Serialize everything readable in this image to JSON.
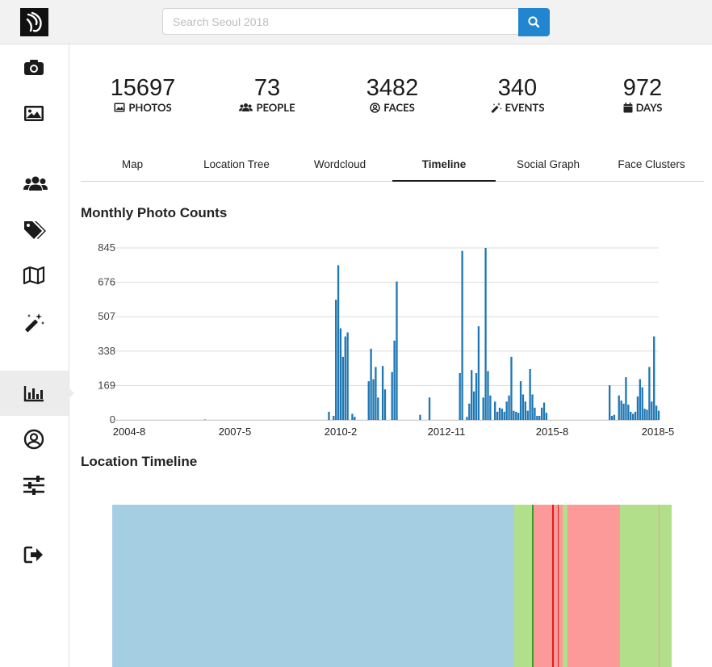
{
  "app": {
    "search_placeholder": "Search Seoul 2018"
  },
  "stats": [
    {
      "value": "15697",
      "label": "PHOTOS",
      "icon": "image-icon"
    },
    {
      "value": "73",
      "label": "PEOPLE",
      "icon": "users-icon"
    },
    {
      "value": "3482",
      "label": "FACES",
      "icon": "user-circle-icon"
    },
    {
      "value": "340",
      "label": "EVENTS",
      "icon": "magic-wand-icon"
    },
    {
      "value": "972",
      "label": "DAYS",
      "icon": "calendar-icon"
    }
  ],
  "tabs": [
    {
      "label": "Map"
    },
    {
      "label": "Location Tree"
    },
    {
      "label": "Wordcloud"
    },
    {
      "label": "Timeline",
      "active": true
    },
    {
      "label": "Social Graph"
    },
    {
      "label": "Face Clusters"
    }
  ],
  "sections": {
    "monthly_title": "Monthly Photo Counts",
    "location_title": "Location Timeline"
  },
  "colors": {
    "bar": "#1f77b4",
    "accent": "#2185d0",
    "loc_blue": "#a6cee3",
    "loc_green": "#b2df8a",
    "loc_red": "#fb9a99",
    "loc_darkgreen": "#33a02c",
    "loc_darkred": "#e31a1c"
  },
  "chart_data": {
    "type": "bar",
    "title": "Monthly Photo Counts",
    "xlabel": "",
    "ylabel": "",
    "x_tick_labels": [
      "2004-8",
      "2007-5",
      "2010-2",
      "2012-11",
      "2015-8",
      "2018-5"
    ],
    "y_ticks": [
      0,
      169,
      338,
      507,
      676,
      845
    ],
    "ylim": [
      0,
      845
    ],
    "grid": true,
    "months_from": "2004-08",
    "values": [
      0,
      0,
      0,
      0,
      0,
      0,
      0,
      0,
      0,
      0,
      0,
      0,
      0,
      0,
      0,
      0,
      0,
      0,
      0,
      0,
      0,
      0,
      0,
      0,
      0,
      0,
      0,
      0,
      0,
      0,
      0,
      0,
      0,
      0,
      0,
      0,
      0,
      0,
      0,
      0,
      2,
      0,
      0,
      0,
      0,
      0,
      0,
      0,
      0,
      0,
      0,
      0,
      0,
      0,
      0,
      0,
      0,
      0,
      0,
      0,
      0,
      0,
      0,
      0,
      0,
      0,
      0,
      0,
      0,
      0,
      0,
      0,
      0,
      0,
      0,
      0,
      0,
      0,
      0,
      0,
      0,
      0,
      0,
      0,
      0,
      0,
      0,
      0,
      0,
      0,
      0,
      0,
      0,
      40,
      0,
      20,
      590,
      760,
      450,
      310,
      410,
      430,
      0,
      30,
      15,
      0,
      0,
      0,
      0,
      0,
      190,
      350,
      200,
      260,
      110,
      0,
      265,
      150,
      0,
      0,
      235,
      390,
      680,
      0,
      0,
      0,
      0,
      0,
      0,
      0,
      0,
      0,
      25,
      0,
      0,
      0,
      110,
      0,
      0,
      0,
      0,
      0,
      0,
      0,
      0,
      0,
      0,
      0,
      0,
      230,
      830,
      0,
      15,
      80,
      245,
      140,
      230,
      460,
      0,
      110,
      845,
      240,
      120,
      0,
      90,
      40,
      60,
      55,
      40,
      90,
      120,
      310,
      45,
      40,
      35,
      190,
      125,
      90,
      45,
      250,
      125,
      60,
      20,
      20,
      60,
      85,
      35,
      0,
      0,
      0,
      0,
      0,
      0,
      0,
      0,
      0,
      0,
      0,
      0,
      0,
      0,
      0,
      0,
      0,
      0,
      0,
      0,
      0,
      0,
      0,
      0,
      0,
      0,
      170,
      20,
      25,
      0,
      120,
      95,
      80,
      210,
      75,
      40,
      30,
      40,
      115,
      200,
      160,
      55,
      50,
      260,
      90,
      410,
      70,
      45
    ]
  },
  "location_timeline": [
    {
      "start": 0.0,
      "end": 0.718,
      "color": "#a6cee3"
    },
    {
      "start": 0.718,
      "end": 0.751,
      "color": "#b2df8a"
    },
    {
      "start": 0.751,
      "end": 0.753,
      "color": "#33a02c"
    },
    {
      "start": 0.753,
      "end": 0.787,
      "color": "#fb9a99"
    },
    {
      "start": 0.787,
      "end": 0.789,
      "color": "#e31a1c"
    },
    {
      "start": 0.789,
      "end": 0.797,
      "color": "#fb9a99"
    },
    {
      "start": 0.797,
      "end": 0.798,
      "color": "#e31a1c"
    },
    {
      "start": 0.798,
      "end": 0.805,
      "color": "#fb9a99"
    },
    {
      "start": 0.805,
      "end": 0.814,
      "color": "#b2df8a"
    },
    {
      "start": 0.814,
      "end": 0.907,
      "color": "#fb9a99"
    },
    {
      "start": 0.907,
      "end": 0.962,
      "color": "#b2df8a"
    },
    {
      "start": 0.962,
      "end": 0.963,
      "color": "#fb9a99"
    },
    {
      "start": 0.963,
      "end": 0.977,
      "color": "#b2df8a"
    },
    {
      "start": 0.977,
      "end": 0.978,
      "color": "#fb9a99"
    },
    {
      "start": 0.978,
      "end": 1.0,
      "color": "#b2df8a"
    }
  ]
}
